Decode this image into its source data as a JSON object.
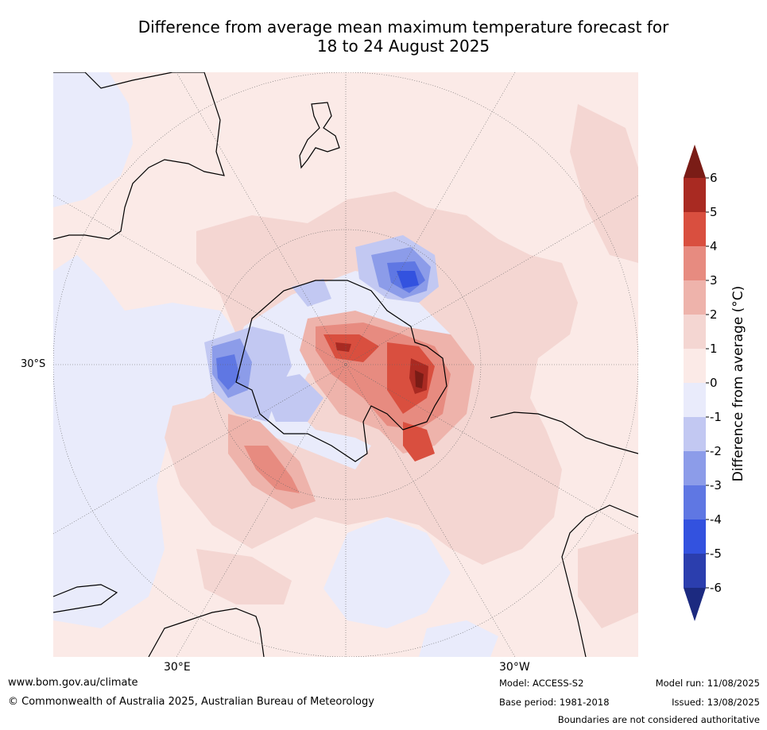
{
  "title_line1": "Difference from average mean maximum temperature forecast for",
  "title_line2": "18 to 24 August 2025",
  "map": {
    "projection": "south polar stereographic",
    "grid": "dotted graticule",
    "lat_labels": [
      "30°S"
    ],
    "lon_labels": [
      "30°E",
      "30°W"
    ]
  },
  "colorbar": {
    "label": "Difference from average (°C)",
    "ticks": [
      "6",
      "5",
      "4",
      "3",
      "2",
      "1",
      "0",
      "-1",
      "-2",
      "-3",
      "-4",
      "-5",
      "-6"
    ],
    "extend": "both",
    "colors": [
      "#7a1c16",
      "#a92a22",
      "#d94f3f",
      "#e78b80",
      "#eeb3ab",
      "#f4d6d2",
      "#fbeae7",
      "#e9ebfb",
      "#c2c8f2",
      "#8c9ce9",
      "#5f77e3",
      "#3352df",
      "#2b3eae",
      "#1c2a80"
    ]
  },
  "footer": {
    "website": "www.bom.gov.au/climate",
    "copyright": "© Commonwealth of Australia 2025, Australian Bureau of Meteorology",
    "model": "Model: ACCESS-S2",
    "base_period": "Base period: 1981-2018",
    "model_run": "Model run: 11/08/2025",
    "issued": "Issued: 13/08/2025",
    "disclaimer": "Boundaries are not considered authoritative"
  }
}
